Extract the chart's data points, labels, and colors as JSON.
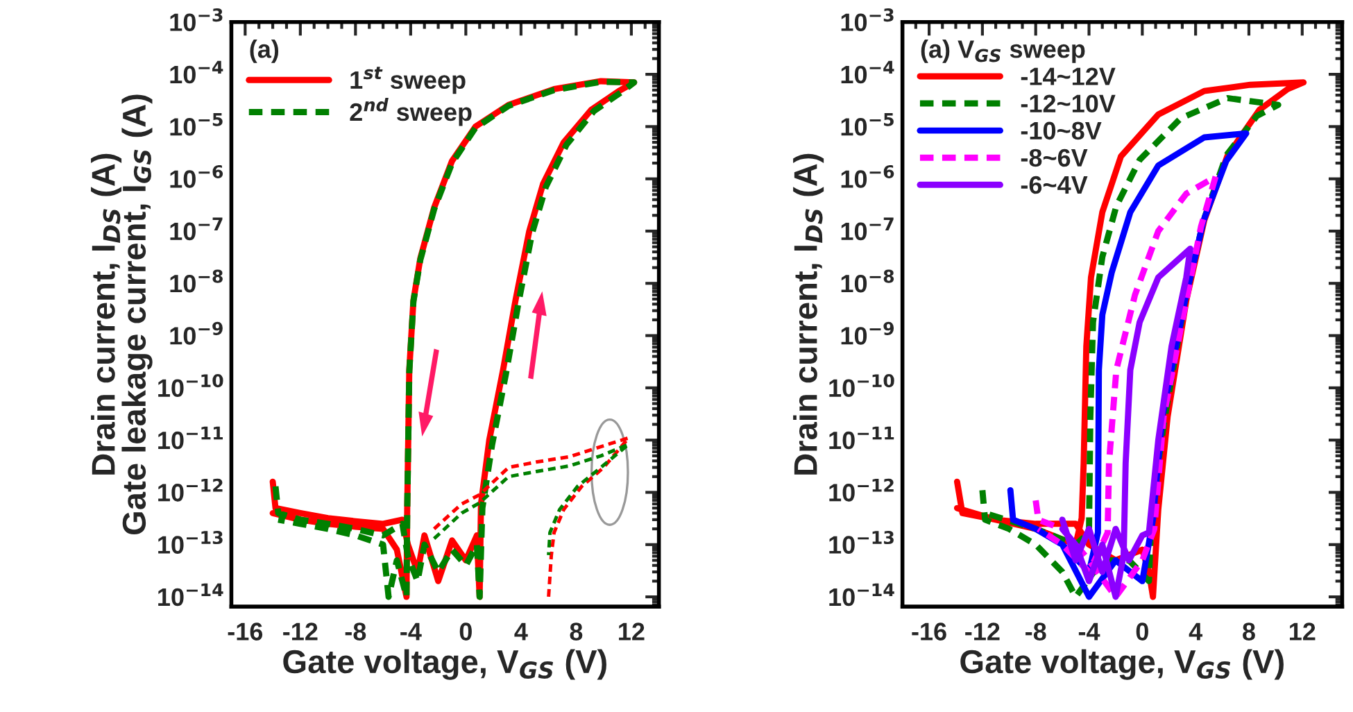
{
  "chart_data": [
    {
      "type": "line",
      "xlabel": "Gate voltage, V$_{GS}$ (V)",
      "ylabel": "Drain current, I$_{DS}$ (A)\nGate leakage current, I$_{GS}$ (A)",
      "legend_title": "(a)",
      "legend": "top left",
      "log": "y",
      "xlim": [
        -17,
        14
      ],
      "xticks": [
        -16,
        -12,
        -8,
        -4,
        0,
        4,
        8,
        12
      ],
      "ylim": [
        6.5e-15,
        0.001
      ],
      "yticks": [
        {
          "value": 1e-14,
          "label": "10$^{−14}$"
        },
        {
          "value": 1e-13,
          "label": "10$^{−13}$"
        },
        {
          "value": 1e-12,
          "label": "10$^{−12}$"
        },
        {
          "value": 1e-11,
          "label": "10$^{−11}$"
        },
        {
          "value": 1e-10,
          "label": "10$^{−10}$"
        },
        {
          "value": 1e-09,
          "label": "10$^{−9}$"
        },
        {
          "value": 1e-08,
          "label": "10$^{−8}$"
        },
        {
          "value": 1e-07,
          "label": "10$^{−7}$"
        },
        {
          "value": 1e-06,
          "label": "10$^{−6}$"
        },
        {
          "value": 1e-05,
          "label": "10$^{−5}$"
        },
        {
          "value": 0.0001,
          "label": "10$^{−4}$"
        },
        {
          "value": 0.001,
          "label": "10$^{−3}$"
        }
      ],
      "series": [
        {
          "name": "1$^{st}$ sweep",
          "color": "#ff0000",
          "line_style": "solid",
          "x": [
            -14.0,
            -13.8,
            -12,
            -10,
            -8,
            -6,
            -4.6,
            -4.2,
            -3.5,
            -3,
            -2,
            -1,
            0,
            0.8,
            1.0,
            1.1,
            1.7,
            2.7,
            3.6,
            4.6,
            5.6,
            7.1,
            9.1,
            11.1,
            12.2,
            9.8,
            6.4,
            3.1,
            0.7,
            -1.0,
            -2.3,
            -3.3,
            -3.8,
            -4.1,
            -4.2,
            -4.25,
            -4.3,
            -5,
            -6,
            -8,
            -10,
            -12,
            -14
          ],
          "values": [
            1.6e-12,
            5e-13,
            4e-13,
            3.2e-13,
            2.8e-13,
            2.5e-13,
            3e-13,
            1e-13,
            3e-14,
            1.5e-13,
            2e-14,
            1.2e-13,
            5e-14,
            1.5e-13,
            1e-14,
            6e-13,
            1e-11,
            2.2e-10,
            4.7e-09,
            1e-07,
            8e-07,
            5e-06,
            2.1e-05,
            4.8e-05,
            7e-05,
            7.4e-05,
            5.2e-05,
            2.6e-05,
            1e-05,
            2.2e-06,
            2.8e-07,
            3e-08,
            4.7e-09,
            2.2e-10,
            3.6e-12,
            4.7e-13,
            1e-14,
            8e-14,
            2e-13,
            2.2e-13,
            2.5e-13,
            3e-13,
            4e-13
          ]
        },
        {
          "name": "2$^{nd}$ sweep",
          "color": "#008000",
          "line_style": "dashed",
          "x": [
            -13.8,
            -13.6,
            -12,
            -10,
            -8,
            -6,
            -4.6,
            -4.2,
            -3.5,
            -3,
            -2,
            -1,
            0,
            0.8,
            1.0,
            1.2,
            1.9,
            2.9,
            3.8,
            4.8,
            5.8,
            7.3,
            9.3,
            11.3,
            12.2,
            9.8,
            6.4,
            3.1,
            0.7,
            -1.0,
            -2.3,
            -3.3,
            -3.8,
            -4.1,
            -4.2,
            -4.25,
            -4.3,
            -5,
            -5.6,
            -6,
            -8,
            -10,
            -12,
            -13.6
          ],
          "values": [
            1.3e-12,
            4e-13,
            3e-13,
            2.5e-13,
            2e-13,
            1.5e-13,
            2.5e-13,
            6e-14,
            2e-14,
            1e-13,
            3e-14,
            8e-14,
            4e-14,
            1e-13,
            1e-14,
            5e-13,
            8e-12,
            1.8e-10,
            4e-09,
            9e-08,
            7e-07,
            4.5e-06,
            2e-05,
            4.6e-05,
            7e-05,
            7.2e-05,
            5e-05,
            2.5e-05,
            9.5e-06,
            2e-06,
            2.6e-07,
            2.8e-08,
            4.5e-09,
            2e-10,
            3.4e-12,
            4.5e-13,
            1e-14,
            5e-14,
            1e-14,
            1e-13,
            1.5e-13,
            2e-13,
            2.5e-13,
            3e-13
          ]
        },
        {
          "color": "#ff0000",
          "line_style": "dashed",
          "x": [
            -2.3,
            -0.3,
            1.0,
            3.1,
            5.1,
            7.5,
            9.8,
            11.8,
            10.0,
            8.4,
            7.1,
            6.4,
            6.2,
            6.0
          ],
          "values": [
            2e-13,
            6e-13,
            9e-13,
            3e-12,
            3.8e-12,
            4.8e-12,
            7.5e-12,
            1.1e-11,
            3e-12,
            1.3e-12,
            4.7e-13,
            1.7e-13,
            6.3e-14,
            1e-14
          ]
        },
        {
          "color": "#008000",
          "line_style": "dashed",
          "x": [
            -2.3,
            -0.3,
            1.0,
            3.1,
            5.1,
            7.5,
            9.8,
            11.8,
            9.8,
            8.1,
            6.8,
            6.1,
            6.0
          ],
          "values": [
            1.3e-13,
            4e-13,
            6.3e-13,
            2e-12,
            2.5e-12,
            3.2e-12,
            5e-12,
            8.3e-12,
            3e-12,
            1.3e-12,
            4.7e-13,
            1.7e-13,
            6.3e-14
          ]
        }
      ]
    },
    {
      "type": "line",
      "xlabel": "Gate voltage, V$_{GS}$ (V)",
      "ylabel": "Drain current, I$_{DS}$ (A)",
      "legend_title": "(a) V$_{GS}$ sweep",
      "legend": "top left",
      "log": "y",
      "xlim": [
        -18,
        15
      ],
      "xticks": [
        -16,
        -12,
        -8,
        -4,
        0,
        4,
        8,
        12
      ],
      "ylim": [
        6.5e-15,
        0.001
      ],
      "yticks": [
        {
          "value": 1e-14,
          "label": "10$^{−14}$"
        },
        {
          "value": 1e-13,
          "label": "10$^{−13}$"
        },
        {
          "value": 1e-12,
          "label": "10$^{−12}$"
        },
        {
          "value": 1e-11,
          "label": "10$^{−11}$"
        },
        {
          "value": 1e-10,
          "label": "10$^{−10}$"
        },
        {
          "value": 1e-09,
          "label": "10$^{−9}$"
        },
        {
          "value": 1e-08,
          "label": "10$^{−8}$"
        },
        {
          "value": 1e-07,
          "label": "10$^{−7}$"
        },
        {
          "value": 1e-06,
          "label": "10$^{−6}$"
        },
        {
          "value": 1e-05,
          "label": "10$^{−5}$"
        },
        {
          "value": 0.0001,
          "label": "10$^{−4}$"
        },
        {
          "value": 0.001,
          "label": "10$^{−3}$"
        }
      ],
      "series": [
        {
          "name": "-14~12V",
          "color": "#ff0000",
          "line_style": "solid",
          "x": [
            -13.9,
            -13.5,
            -11,
            -8,
            -5,
            -4,
            -2,
            0,
            0.5,
            0.8,
            1.2,
            1.9,
            3.3,
            4.65,
            6.4,
            8.8,
            10.9,
            12.1,
            8.1,
            4.65,
            1.2,
            -1.6,
            -3.0,
            -3.85,
            -4.2,
            -4.4,
            -4.55,
            -5,
            -8,
            -11,
            -13.9
          ],
          "values": [
            1.6e-12,
            4e-13,
            3e-13,
            2.5e-13,
            2.5e-13,
            1e-13,
            5e-14,
            8e-14,
            3e-14,
            1e-14,
            4.7e-13,
            2.8e-11,
            4.7e-09,
            1.6e-07,
            2.8e-06,
            2.1e-05,
            5.2e-05,
            7e-05,
            6.3e-05,
            4.8e-05,
            1.7e-05,
            2.7e-06,
            2.3e-07,
            1.3e-08,
            6.3e-10,
            3.6e-12,
            3.2e-13,
            1e-13,
            2e-13,
            3e-13,
            5e-13
          ]
        },
        {
          "name": "-12~10V",
          "color": "#008000",
          "line_style": "dashed",
          "x": [
            -12,
            -11.8,
            -10,
            -8,
            -6,
            -5,
            -3,
            -1,
            0.5,
            0.7,
            1.7,
            3.2,
            4.6,
            6.3,
            8.6,
            10.2,
            6.4,
            2.9,
            -0.2,
            -1.95,
            -3.0,
            -3.7,
            -3.9,
            -4.0,
            -5,
            -8,
            -11.8
          ],
          "values": [
            1.1e-12,
            3e-13,
            2e-13,
            1e-13,
            3e-14,
            1e-14,
            5e-14,
            5e-14,
            2e-14,
            5e-13,
            2.8e-11,
            4.7e-09,
            1.6e-07,
            2.8e-06,
            1.6e-05,
            2.6e-05,
            3.5e-05,
            1.45e-05,
            2.3e-06,
            3e-07,
            3.2e-08,
            1.8e-09,
            2.8e-11,
            1.7e-13,
            1e-13,
            2e-13,
            4e-13
          ]
        },
        {
          "name": "-10~8V",
          "color": "#0000ff",
          "line_style": "solid",
          "x": [
            -9.9,
            -9.7,
            -8,
            -6,
            -4,
            -2,
            0,
            0.8,
            1.5,
            3.2,
            4.6,
            6.3,
            7.8,
            4.65,
            1.2,
            -0.9,
            -2.3,
            -3.0,
            -3.26,
            -3.33,
            -4,
            -6,
            -8,
            -9.7
          ],
          "values": [
            1.1e-12,
            3e-13,
            2e-13,
            1e-13,
            1e-14,
            5e-14,
            2e-14,
            3e-13,
            2.8e-11,
            4.7e-09,
            1.6e-07,
            2.2e-06,
            7.4e-06,
            6.2e-06,
            1.8e-06,
            2.3e-07,
            1.6e-08,
            2.5e-09,
            2.2e-10,
            1.7e-13,
            3e-14,
            1e-13,
            2e-13,
            3e-13
          ]
        },
        {
          "name": "-8~6V",
          "color": "#ff00ff",
          "line_style": "dashed",
          "x": [
            -8.0,
            -7.8,
            -6,
            -4,
            -2,
            0,
            0.9,
            1.6,
            3.3,
            4.4,
            5.5,
            3.3,
            1.2,
            -0.55,
            -1.95,
            -2.5,
            -2.6,
            -4,
            -6,
            -7.8
          ],
          "values": [
            7e-13,
            3e-13,
            2e-13,
            5e-14,
            1e-14,
            5e-14,
            2e-13,
            2.8e-11,
            4.7e-09,
            1.2e-07,
            1.1e-06,
            5.2e-07,
            1e-07,
            6e-09,
            2.2e-10,
            3.6e-12,
            1.7e-13,
            3e-14,
            1e-13,
            2e-13
          ]
        },
        {
          "name": "-6~4V",
          "color": "#8b00ff",
          "line_style": "solid",
          "x": [
            -6,
            -5,
            -4,
            -3,
            -2,
            -1,
            0,
            0.5,
            1.2,
            2.2,
            3.3,
            3.6,
            1.2,
            -0.2,
            -0.9,
            -1.25,
            -1.4,
            -2,
            -3,
            -4,
            -5,
            -6
          ],
          "values": [
            3e-13,
            5e-14,
            2e-13,
            3e-14,
            2e-13,
            5e-14,
            1.5e-13,
            1.7e-13,
            1e-11,
            6.3e-10,
            1.3e-08,
            4.6e-08,
            1.3e-08,
            1.8e-09,
            2.2e-10,
            3.6e-12,
            6.3e-14,
            1e-14,
            1e-13,
            2e-14,
            1e-13,
            2e-13
          ]
        }
      ]
    }
  ]
}
